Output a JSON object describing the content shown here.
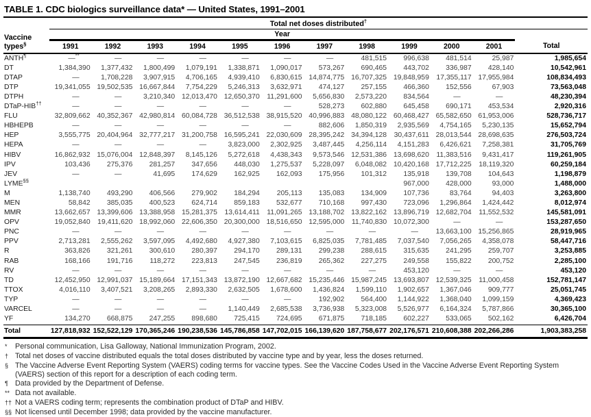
{
  "title": "TABLE 1. CDC biologics surveillance data* — United States, 1991–2001",
  "table": {
    "group_header": {
      "label": "Total net doses distributed",
      "sup": "†"
    },
    "year_header": "Year",
    "col0_header": {
      "line1": "Vaccine",
      "line2": "types",
      "sup": "§"
    },
    "year_columns": [
      "1991",
      "1992",
      "1993",
      "1994",
      "1995",
      "1996",
      "1997",
      "1998",
      "1999",
      "2000",
      "2001"
    ],
    "total_column": "Total",
    "rows": [
      {
        "name": "ANTH^¶",
        "values": [
          "—^**",
          "—",
          "—",
          "—",
          "—",
          "—",
          "—",
          "481,515",
          "996,638",
          "481,514",
          "25,987"
        ],
        "total": "1,985,654"
      },
      {
        "name": "DT",
        "values": [
          "1,384,390",
          "1,377,432",
          "1,800,499",
          "1,079,191",
          "1,338,871",
          "1,090,017",
          "573,267",
          "690,465",
          "443,702",
          "336,987",
          "428,140"
        ],
        "total": "10,542,961"
      },
      {
        "name": "DTAP",
        "values": [
          "—",
          "1,708,228",
          "3,907,915",
          "4,706,165",
          "4,939,410",
          "6,830,615",
          "14,874,775",
          "16,707,325",
          "19,848,959",
          "17,355,117",
          "17,955,984"
        ],
        "total": "108,834,493"
      },
      {
        "name": "DTP",
        "values": [
          "19,341,055",
          "19,502,535",
          "16,667,844",
          "7,754,229",
          "5,246,313",
          "3,632,971",
          "474,127",
          "257,155",
          "466,360",
          "152,556",
          "67,903"
        ],
        "total": "73,563,048"
      },
      {
        "name": "DTPH",
        "values": [
          "—",
          "—",
          "3,210,340",
          "12,013,470",
          "12,650,370",
          "11,291,600",
          "5,656,830",
          "2,573,220",
          "834,564",
          "—",
          "—"
        ],
        "total": "48,230,394"
      },
      {
        "name": "DTaP-HIB^††",
        "values": [
          "—",
          "—",
          "—",
          "—",
          "—",
          "—",
          "528,273",
          "602,880",
          "645,458",
          "690,171",
          "453,534"
        ],
        "total": "2,920,316"
      },
      {
        "name": "FLU",
        "values": [
          "32,809,662",
          "40,352,367",
          "42,980,814",
          "60,084,728",
          "36,512,538",
          "38,915,520",
          "40,996,883",
          "48,080,122",
          "60,468,427",
          "65,582,650",
          "61,953,006"
        ],
        "total": "528,736,717"
      },
      {
        "name": "HBHEPB",
        "values": [
          "—",
          "—",
          "—",
          "—",
          "—",
          "—",
          "882,606",
          "1,850,319",
          "2,935,569",
          "4,754,165",
          "5,230,135"
        ],
        "total": "15,652,794"
      },
      {
        "name": "HEP",
        "values": [
          "3,555,775",
          "20,404,964",
          "32,777,217",
          "31,200,758",
          "16,595,241",
          "22,030,609",
          "28,395,242",
          "34,394,128",
          "30,437,611",
          "28,013,544",
          "28,698,635"
        ],
        "total": "276,503,724"
      },
      {
        "name": "HEPA",
        "values": [
          "—",
          "—",
          "—",
          "—",
          "3,823,000",
          "2,302,925",
          "3,487,445",
          "4,256,114",
          "4,151,283",
          "6,426,621",
          "7,258,381"
        ],
        "total": "31,705,769"
      },
      {
        "name": "HIBV",
        "values": [
          "16,862,932",
          "15,076,004",
          "12,848,397",
          "8,145,126",
          "5,272,618",
          "4,438,343",
          "9,573,546",
          "12,531,386",
          "13,698,620",
          "11,383,516",
          "9,431,417"
        ],
        "total": "119,261,905"
      },
      {
        "name": "IPV",
        "values": [
          "103,436",
          "275,376",
          "281,257",
          "347,656",
          "448,030",
          "1,275,537",
          "5,228,097",
          "6,048,082",
          "10,420,168",
          "17,712,225",
          "18,119,320"
        ],
        "total": "60,259,184"
      },
      {
        "name": "JEV",
        "values": [
          "—",
          "—",
          "41,695",
          "174,629",
          "162,925",
          "162,093",
          "175,956",
          "101,312",
          "135,918",
          "139,708",
          "104,643"
        ],
        "total": "1,198,879"
      },
      {
        "name": "LYME^§§",
        "values": [
          "",
          "",
          "",
          "",
          "",
          "",
          "",
          "",
          "967,000",
          "428,000",
          "93,000"
        ],
        "total": "1,488,000"
      },
      {
        "name": "M",
        "values": [
          "1,138,740",
          "493,290",
          "406,566",
          "279,902",
          "184,294",
          "205,113",
          "135,083",
          "134,909",
          "107,736",
          "83,764",
          "94,403"
        ],
        "total": "3,263,800"
      },
      {
        "name": "MEN",
        "values": [
          "58,842",
          "385,035",
          "400,523",
          "624,714",
          "859,183",
          "532,677",
          "710,168",
          "997,430",
          "723,096",
          "1,296,864",
          "1,424,442"
        ],
        "total": "8,012,974"
      },
      {
        "name": "MMR",
        "values": [
          "13,662,657",
          "13,399,606",
          "13,388,958",
          "15,281,375",
          "13,614,411",
          "11,091,265",
          "13,188,702",
          "13,822,162",
          "13,896,719",
          "12,682,704",
          "11,552,532"
        ],
        "total": "145,581,091"
      },
      {
        "name": "OPV",
        "values": [
          "19,052,840",
          "19,411,620",
          "18,992,060",
          "22,606,350",
          "20,300,000",
          "18,516,650",
          "12,595,000",
          "11,740,830",
          "10,072,300",
          "—",
          "—"
        ],
        "total": "153,287,650"
      },
      {
        "name": "PNC",
        "values": [
          "—",
          "—",
          "—",
          "—",
          "—",
          "—",
          "—",
          "—",
          "—",
          "13,663,100",
          "15,256,865"
        ],
        "total": "28,919,965"
      },
      {
        "name": "PPV",
        "values": [
          "2,713,281",
          "2,555,262",
          "3,597,095",
          "4,492,680",
          "4,927,380",
          "7,103,615",
          "6,825,035",
          "7,781,485",
          "7,037,540",
          "7,056,265",
          "4,358,078"
        ],
        "total": "58,447,716"
      },
      {
        "name": "R",
        "values": [
          "363,826",
          "321,261",
          "300,610",
          "280,397",
          "294,170",
          "289,131",
          "299,238",
          "288,615",
          "315,635",
          "241,295",
          "259,707"
        ],
        "total": "3,253,885"
      },
      {
        "name": "RAB",
        "values": [
          "168,166",
          "191,716",
          "118,272",
          "223,813",
          "247,545",
          "236,819",
          "265,362",
          "227,275",
          "249,558",
          "155,822",
          "200,752"
        ],
        "total": "2,285,100"
      },
      {
        "name": "RV",
        "values": [
          "—",
          "—",
          "—",
          "—",
          "—",
          "—",
          "—",
          "—",
          "453,120",
          "—",
          "—"
        ],
        "total": "453,120"
      },
      {
        "name": "TD",
        "values": [
          "12,452,950",
          "12,991,037",
          "15,189,664",
          "17,151,343",
          "13,872,190",
          "12,667,682",
          "15,235,446",
          "15,987,245",
          "13,693,807",
          "12,539,325",
          "11,000,458"
        ],
        "total": "152,781,147"
      },
      {
        "name": "TTOX",
        "values": [
          "4,016,110",
          "3,407,521",
          "3,208,265",
          "2,893,330",
          "2,632,505",
          "1,678,600",
          "1,436,824",
          "1,599,110",
          "1,902,657",
          "1,367,046",
          "909,777"
        ],
        "total": "25,051,745"
      },
      {
        "name": "TYP",
        "values": [
          "—",
          "—",
          "—",
          "—",
          "—",
          "—",
          "192,902",
          "564,400",
          "1,144,922",
          "1,368,040",
          "1,099,159"
        ],
        "total": "4,369,423"
      },
      {
        "name": "VARCEL",
        "values": [
          "—",
          "—",
          "—",
          "—",
          "1,140,449",
          "2,685,538",
          "3,736,938",
          "5,323,008",
          "5,526,977",
          "6,164,324",
          "5,787,866"
        ],
        "total": "30,365,100"
      },
      {
        "name": "YF",
        "values": [
          "134,270",
          "668,875",
          "247,255",
          "898,680",
          "725,415",
          "724,695",
          "671,875",
          "718,185",
          "602,227",
          "533,065",
          "502,162"
        ],
        "total": "6,426,704"
      }
    ],
    "total_row": {
      "name": "Total",
      "values": [
        "127,818,932",
        "152,522,129",
        "170,365,246",
        "190,238,536",
        "145,786,858",
        "147,702,015",
        "166,139,620",
        "187,758,677",
        "202,176,571",
        "210,608,388",
        "202,266,286"
      ],
      "total": "1,903,383,258"
    }
  },
  "footnotes": [
    {
      "marker": "*",
      "text": "Personal communication, Lisa Galloway, National Immunization Program, 2002."
    },
    {
      "marker": "†",
      "text": "Total net doses of vaccine distributed equals the total doses distributed by vaccine type and by year, less the doses returned."
    },
    {
      "marker": "§",
      "text": "The Vaccine Adverse Event Reporting System (VAERS) coding terms for vaccine types. See the Vaccine Codes Used in the Vaccine Adverse Event Reporting System (VAERS) section of this report for a description of each coding term."
    },
    {
      "marker": "¶",
      "text": "Data provided by the Department of Defense."
    },
    {
      "marker": "**",
      "text": "Data not available."
    },
    {
      "marker": "††",
      "text": "Not a VAERS coding term; represents the combination product of DTaP and HIBV."
    },
    {
      "marker": "§§",
      "text": "Not licensed until December 1998; data provided by the vaccine manufacturer."
    }
  ]
}
